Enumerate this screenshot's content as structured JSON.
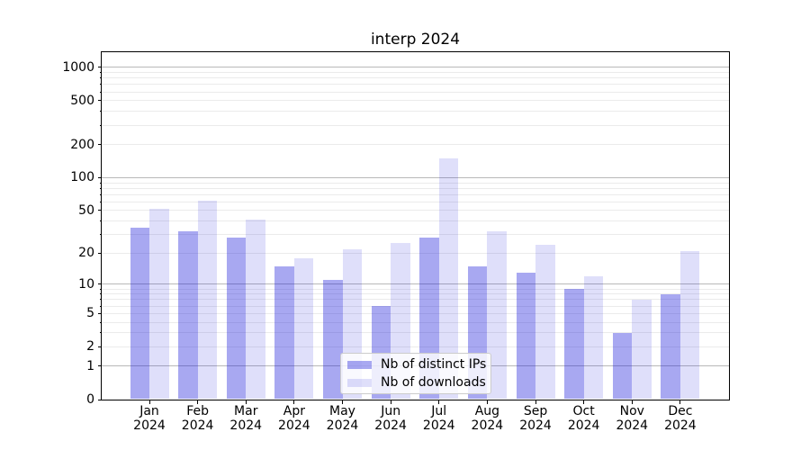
{
  "chart_data": {
    "type": "bar",
    "title": "interp 2024",
    "categories": [
      "Jan 2024",
      "Feb 2024",
      "Mar 2024",
      "Apr 2024",
      "May 2024",
      "Jun 2024",
      "Jul 2024",
      "Aug 2024",
      "Sep 2024",
      "Oct 2024",
      "Nov 2024",
      "Dec 2024"
    ],
    "series": [
      {
        "name": "Nb of distinct IPs",
        "base_color": "#1a1ad9",
        "alpha": 0.38,
        "values": [
          35,
          32,
          28,
          15,
          11,
          6,
          28,
          15,
          13,
          9,
          3,
          8
        ]
      },
      {
        "name": "Nb of downloads",
        "base_color": "#1a1ad9",
        "alpha": 0.14,
        "values": [
          52,
          62,
          41,
          18,
          22,
          25,
          150,
          32,
          24,
          12,
          7,
          21
        ]
      }
    ],
    "xlabel": "",
    "ylabel": "",
    "yscale": "log10(value+1)",
    "yticks": [
      0,
      1,
      2,
      5,
      10,
      20,
      50,
      100,
      200,
      500,
      1000
    ],
    "ylim": [
      0,
      1372
    ],
    "grid": true,
    "grid_major_values": [
      1,
      10,
      100,
      1000
    ],
    "legend_position": "lower center"
  }
}
